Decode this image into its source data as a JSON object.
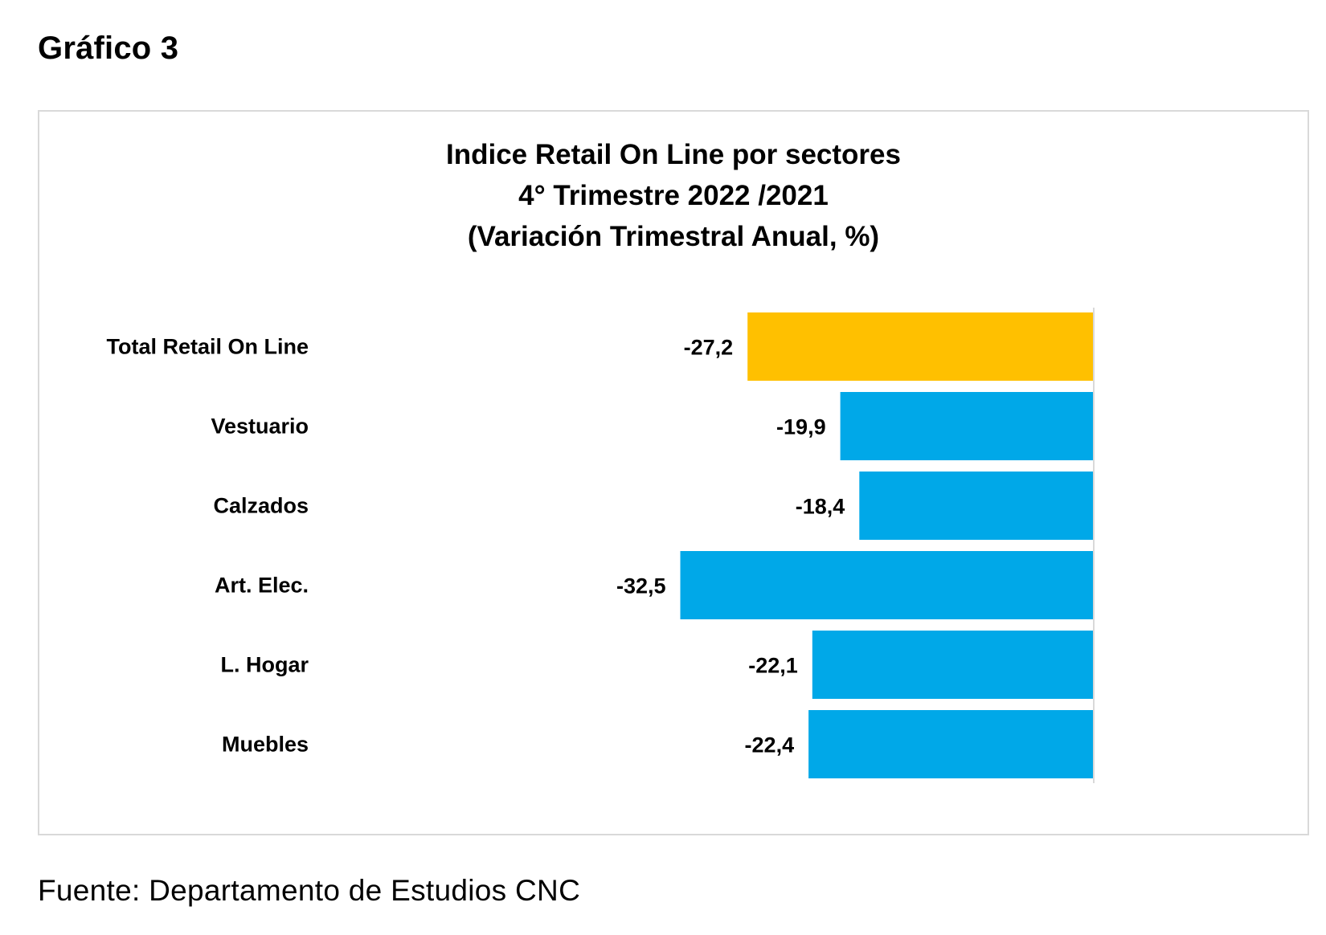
{
  "figure_label": "Gráfico 3",
  "source_note": "Fuente: Departamento de Estudios CNC",
  "chart_data": {
    "type": "bar",
    "orientation": "horizontal",
    "title": "Indice Retail On Line por sectores",
    "title_lines": [
      "Indice Retail On Line por sectores",
      "4° Trimestre 2022 /2021",
      "(Variación Trimestral Anual, %)"
    ],
    "xlabel": "",
    "ylabel": "",
    "xlim": [
      -35,
      0
    ],
    "grid": false,
    "legend": "none",
    "categories": [
      "Total Retail On Line",
      "Vestuario",
      "Calzados",
      "Art. Elec.",
      "L. Hogar",
      "Muebles"
    ],
    "values": [
      -27.2,
      -19.9,
      -18.4,
      -32.5,
      -22.1,
      -22.4
    ],
    "value_labels": [
      "-27,2",
      "-19,9",
      "-18,4",
      "-32,5",
      "-22,1",
      "-22,4"
    ],
    "colors": [
      "#FFC000",
      "#00A8E8",
      "#00A8E8",
      "#00A8E8",
      "#00A8E8",
      "#00A8E8"
    ],
    "highlight_color": "#FFC000",
    "series_color": "#00A8E8",
    "axis_color": "#d9d9d9"
  }
}
